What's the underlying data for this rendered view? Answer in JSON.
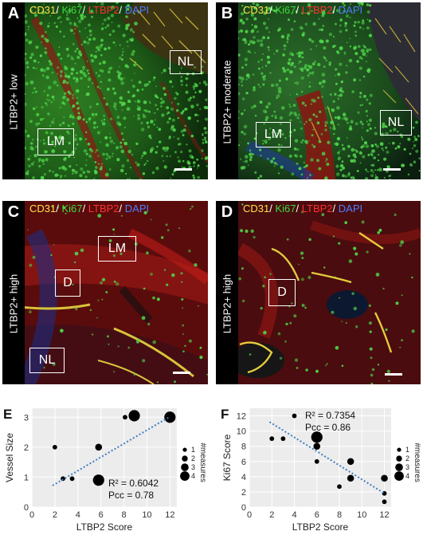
{
  "stain_label": {
    "cd31": "CD31",
    "ki67": "Ki67",
    "ltbp2": "LTBP2",
    "dapi": "DAPI",
    "sep": "/ "
  },
  "panels": {
    "A": {
      "letter": "A",
      "side_label": "LTBP2+ low",
      "roi": [
        "NL",
        "LM"
      ]
    },
    "B": {
      "letter": "B",
      "side_label": "LTBP2+ moderate",
      "roi": [
        "LM",
        "NL"
      ]
    },
    "C": {
      "letter": "C",
      "side_label": "LTBP2+ high",
      "roi": [
        "LM",
        "D",
        "NL"
      ]
    },
    "D": {
      "letter": "D",
      "side_label": "LTBP2+ high",
      "roi": [
        "D"
      ]
    }
  },
  "colors": {
    "cd31": "#ffe14a",
    "ki67": "#3ddc3d",
    "ltbp2": "#ff3030",
    "dapi": "#4f7dff"
  },
  "chart_data": [
    {
      "type": "scatter",
      "panel_letter": "E",
      "xlabel": "LTBP2 Score",
      "ylabel": "Vessel Size",
      "xlim": [
        0,
        12.6
      ],
      "ylim": [
        0,
        3.3
      ],
      "xticks": [
        0,
        2,
        4,
        6,
        8,
        10,
        12
      ],
      "yticks": [
        0,
        1,
        2,
        3
      ],
      "points": [
        {
          "x": 2,
          "y": 2,
          "n": 1
        },
        {
          "x": 2.7,
          "y": 0.95,
          "n": 1
        },
        {
          "x": 3.5,
          "y": 0.95,
          "n": 1
        },
        {
          "x": 5.8,
          "y": 2,
          "n": 2
        },
        {
          "x": 5.8,
          "y": 0.9,
          "n": 4
        },
        {
          "x": 8.1,
          "y": 3,
          "n": 1
        },
        {
          "x": 8.9,
          "y": 3.05,
          "n": 4
        },
        {
          "x": 12,
          "y": 3,
          "n": 4
        }
      ],
      "trend": {
        "x0": 1.8,
        "y0": 0.72,
        "x1": 12,
        "y1": 3.02
      },
      "stats": [
        "R² = 0.6042",
        "Pcc = 0.78"
      ],
      "legend": {
        "title": "#measures",
        "entries": [
          "1",
          "2",
          "3",
          "4"
        ]
      },
      "grid": true
    },
    {
      "type": "scatter",
      "panel_letter": "F",
      "xlabel": "LTBP2 Score",
      "ylabel": "Ki67 Score",
      "xlim": [
        0,
        12.6
      ],
      "ylim": [
        0,
        13
      ],
      "xticks": [
        0,
        2,
        4,
        6,
        8,
        10,
        12
      ],
      "yticks": [
        0,
        2,
        4,
        6,
        8,
        10,
        12
      ],
      "points": [
        {
          "x": 2,
          "y": 9,
          "n": 1
        },
        {
          "x": 3,
          "y": 9,
          "n": 1
        },
        {
          "x": 4,
          "y": 12,
          "n": 1
        },
        {
          "x": 6,
          "y": 9.2,
          "n": 4
        },
        {
          "x": 6,
          "y": 8,
          "n": 2
        },
        {
          "x": 6,
          "y": 6,
          "n": 1
        },
        {
          "x": 8,
          "y": 2.7,
          "n": 1
        },
        {
          "x": 9,
          "y": 6,
          "n": 2
        },
        {
          "x": 9,
          "y": 3.8,
          "n": 2
        },
        {
          "x": 12,
          "y": 3.8,
          "n": 2
        },
        {
          "x": 12,
          "y": 1.8,
          "n": 1
        },
        {
          "x": 12,
          "y": 0.7,
          "n": 1
        }
      ],
      "trend": {
        "x0": 1.8,
        "y0": 11.2,
        "x1": 12,
        "y1": 1.8
      },
      "stats": [
        "R² = 0.7354",
        "Pcc = 0.86"
      ],
      "legend": {
        "title": "#measures",
        "entries": [
          "1",
          "2",
          "3",
          "4"
        ]
      },
      "grid": true
    }
  ]
}
